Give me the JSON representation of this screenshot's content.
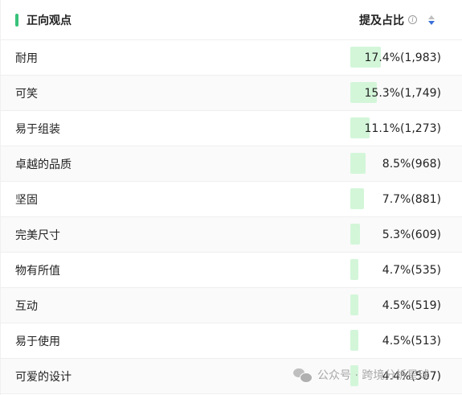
{
  "colors": {
    "accent": "#38c27a",
    "bar": "#d3f6d9",
    "sort_active": "#3a6fd8"
  },
  "header": {
    "title": "正向观点",
    "column_title": "提及占比",
    "info_icon": "info-circle-icon",
    "sort_icon": "sort-caret-icon"
  },
  "rows": [
    {
      "label": "耐用",
      "value": "17.4%(1,983)",
      "percent": 17.4
    },
    {
      "label": "可笑",
      "value": "15.3%(1,749)",
      "percent": 15.3
    },
    {
      "label": "易于组装",
      "value": "11.1%(1,273)",
      "percent": 11.1
    },
    {
      "label": "卓越的品质",
      "value": "8.5%(968)",
      "percent": 8.5
    },
    {
      "label": "坚固",
      "value": "7.7%(881)",
      "percent": 7.7
    },
    {
      "label": "完美尺寸",
      "value": "5.3%(609)",
      "percent": 5.3
    },
    {
      "label": "物有所值",
      "value": "4.7%(535)",
      "percent": 4.7
    },
    {
      "label": "互动",
      "value": "4.5%(519)",
      "percent": 4.5
    },
    {
      "label": "易于使用",
      "value": "4.5%(513)",
      "percent": 4.5
    },
    {
      "label": "可爱的设计",
      "value": "4.4%(507)",
      "percent": 4.4
    }
  ],
  "watermark": {
    "text": "公众号 · 跨境分析星球",
    "icon": "wechat-icon"
  }
}
